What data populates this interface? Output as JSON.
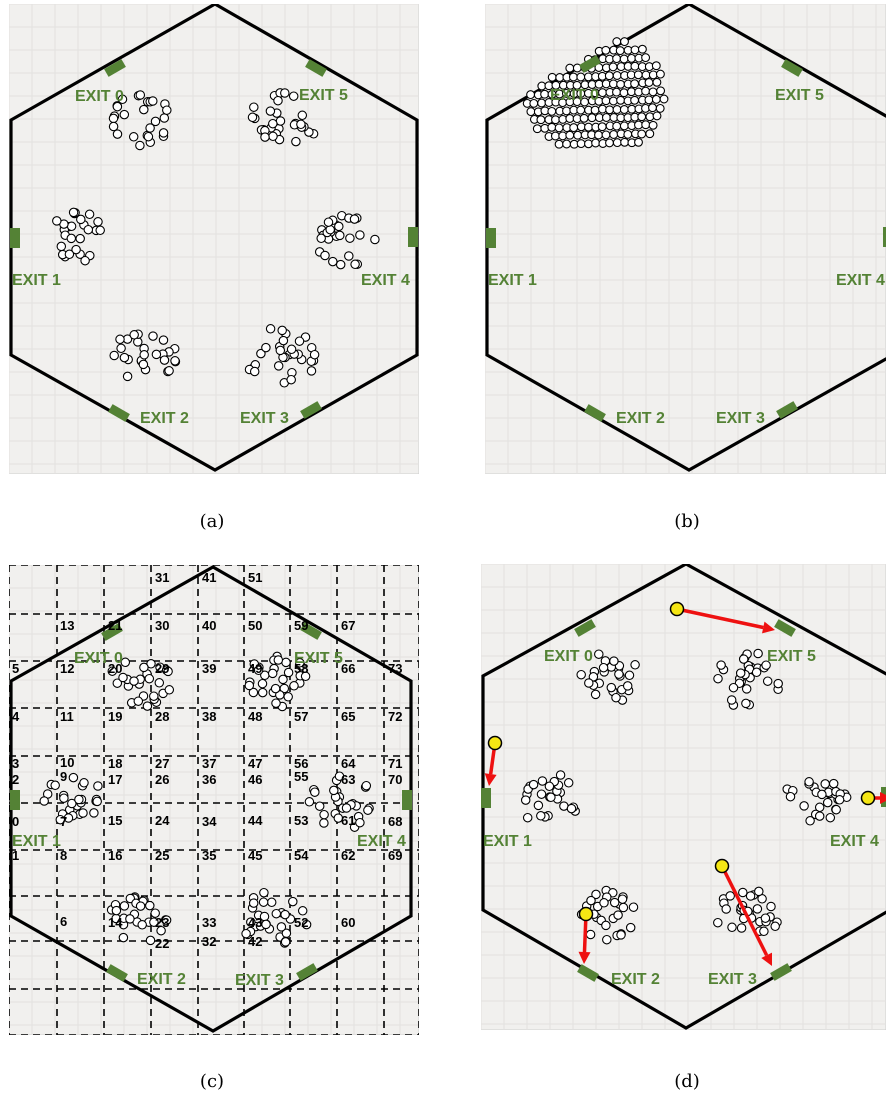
{
  "panels": [
    {
      "id": "a",
      "caption": "(a)",
      "exits": [
        "EXIT 0",
        "EXIT 1",
        "EXIT 2",
        "EXIT 3",
        "EXIT 4",
        "EXIT 5"
      ],
      "crowd_layout": "six-groups",
      "grid_overlay": false,
      "leaders": false
    },
    {
      "id": "b",
      "caption": "(b)",
      "exits": [
        "EXIT 0",
        "EXIT 1",
        "EXIT 2",
        "EXIT 3",
        "EXIT 4",
        "EXIT 5"
      ],
      "crowd_layout": "crowded-at-exit-0",
      "grid_overlay": false,
      "leaders": false
    },
    {
      "id": "c",
      "caption": "(c)",
      "exits": [
        "EXIT 0",
        "EXIT 1",
        "EXIT 2",
        "EXIT 3",
        "EXIT 4",
        "EXIT 5"
      ],
      "crowd_layout": "six-groups",
      "grid_overlay": true,
      "cell_numbers": [
        "0",
        "1",
        "2",
        "3",
        "4",
        "5",
        "6",
        "7",
        "8",
        "9",
        "10",
        "11",
        "12",
        "13",
        "14",
        "15",
        "16",
        "17",
        "18",
        "19",
        "20",
        "21",
        "22",
        "23",
        "24",
        "25",
        "26",
        "27",
        "28",
        "29",
        "30",
        "31",
        "32",
        "33",
        "34",
        "35",
        "36",
        "37",
        "38",
        "39",
        "40",
        "41",
        "42",
        "43",
        "44",
        "45",
        "46",
        "47",
        "48",
        "49",
        "50",
        "51",
        "52",
        "53",
        "54",
        "55",
        "56",
        "57",
        "58",
        "59",
        "60",
        "61",
        "62",
        "63",
        "64",
        "65",
        "66",
        "67",
        "68",
        "69",
        "70",
        "71",
        "72",
        "73"
      ],
      "leaders": false
    },
    {
      "id": "d",
      "caption": "(d)",
      "exits": [
        "EXIT 0",
        "EXIT 1",
        "EXIT 2",
        "EXIT 3",
        "EXIT 4",
        "EXIT 5"
      ],
      "crowd_layout": "six-groups",
      "grid_overlay": false,
      "leaders": true
    }
  ],
  "colors": {
    "exit": "#548235",
    "wall": "#000000",
    "leader": "#f5e614",
    "guidance_arrow": "#ee1111",
    "floor": "#f1f0ee"
  }
}
